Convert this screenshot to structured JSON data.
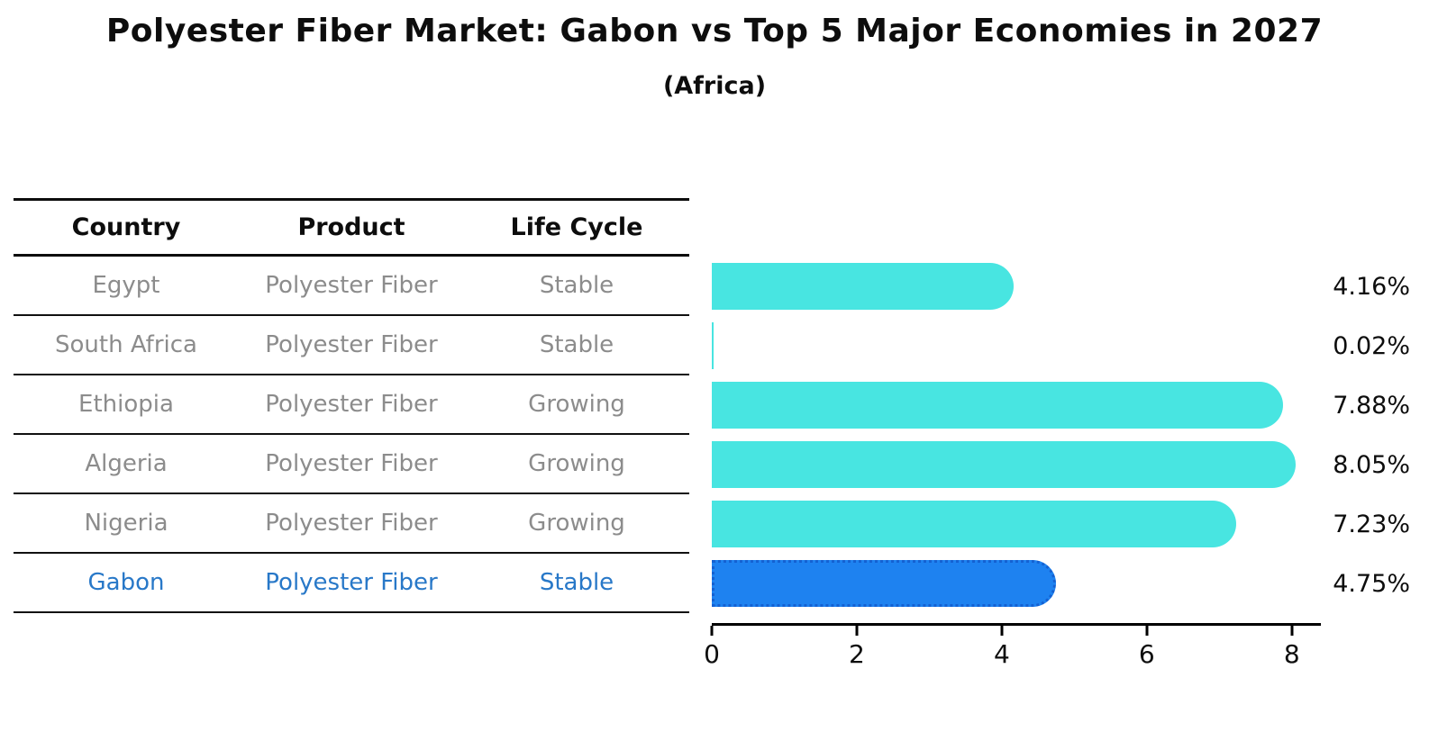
{
  "chart_data": {
    "type": "bar",
    "orientation": "horizontal",
    "title": "Polyester Fiber Market: Gabon vs Top 5 Major Economies in 2027",
    "subtitle": "(Africa)",
    "categories": [
      "Egypt",
      "South Africa",
      "Ethiopia",
      "Algeria",
      "Nigeria",
      "Gabon"
    ],
    "values": [
      4.16,
      0.02,
      7.88,
      8.05,
      7.23,
      4.75
    ],
    "value_labels": [
      "4.16%",
      "0.02%",
      "7.88%",
      "8.05%",
      "7.23%",
      "4.75%"
    ],
    "xticks": [
      0,
      2,
      4,
      6,
      8
    ],
    "xlim": [
      0,
      8.4
    ],
    "grid": false,
    "legend": "none",
    "highlight_index": 5,
    "bar_color": "#48e5e1",
    "highlight_color": "#1e82f0",
    "highlight_border_color": "#1461d2"
  },
  "table": {
    "columns": [
      "Country",
      "Product",
      "Life Cycle"
    ],
    "rows": [
      {
        "country": "Egypt",
        "product": "Polyester Fiber",
        "life_cycle": "Stable"
      },
      {
        "country": "South Africa",
        "product": "Polyester Fiber",
        "life_cycle": "Stable"
      },
      {
        "country": "Ethiopia",
        "product": "Polyester Fiber",
        "life_cycle": "Growing"
      },
      {
        "country": "Algeria",
        "product": "Polyester Fiber",
        "life_cycle": "Growing"
      },
      {
        "country": "Nigeria",
        "product": "Polyester Fiber",
        "life_cycle": "Growing"
      },
      {
        "country": "Gabon",
        "product": "Polyester Fiber",
        "life_cycle": "Stable"
      }
    ]
  },
  "colors": {
    "background": "#ffffff",
    "header_text": "#0d0d0d",
    "row_text": "#8c8c8c",
    "highlight_text": "#2878c8",
    "axis": "#000000"
  }
}
